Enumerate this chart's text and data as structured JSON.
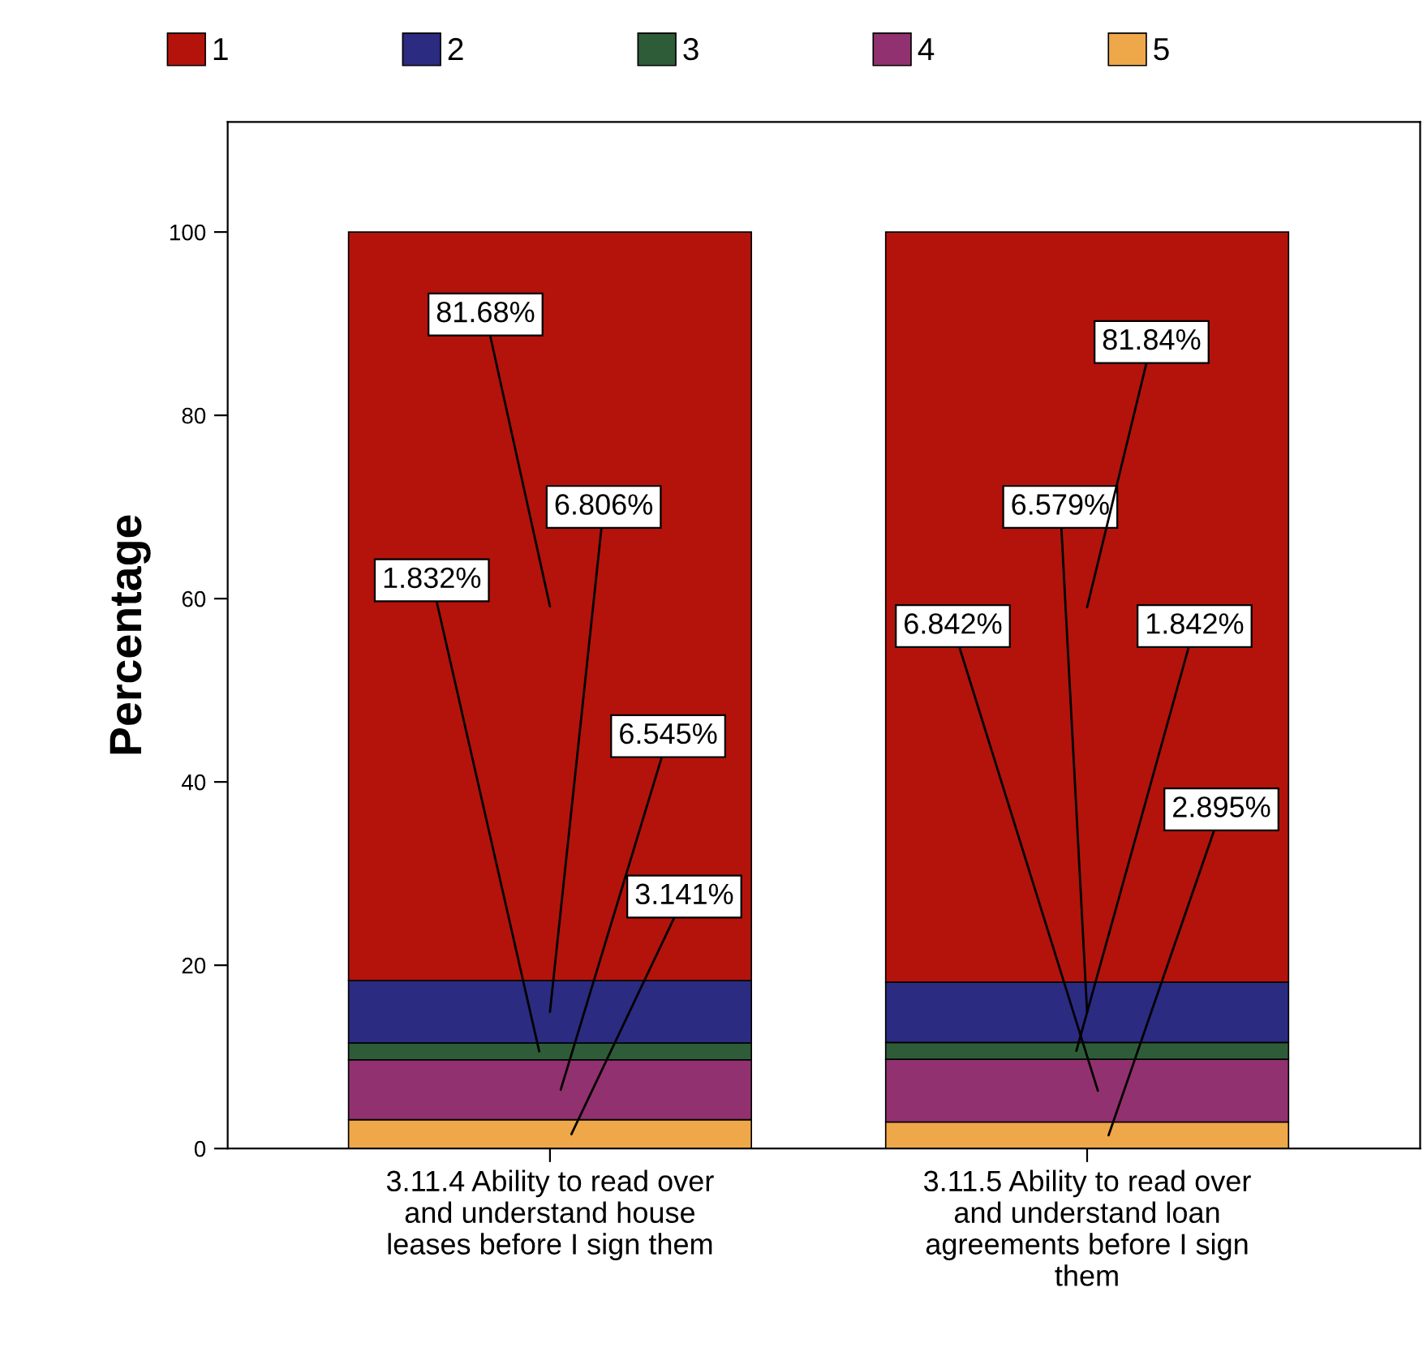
{
  "chart_data": {
    "type": "bar",
    "stacked": true,
    "ylabel": "Percentage",
    "categories": [
      "3.11.4 Ability to read over\nand understand house\nleases before I sign them",
      "3.11.5 Ability to read over\nand understand loan\nagreements before I sign\nthem"
    ],
    "series": [
      {
        "name": "5",
        "color": "#eea84a",
        "values": [
          3.141,
          2.895
        ],
        "value_labels": [
          "3.141%",
          "2.895%"
        ]
      },
      {
        "name": "4",
        "color": "#92316f",
        "values": [
          6.545,
          6.842
        ],
        "value_labels": [
          "6.545%",
          "6.842%"
        ]
      },
      {
        "name": "3",
        "color": "#2e5c39",
        "values": [
          1.832,
          1.842
        ],
        "value_labels": [
          "1.832%",
          "1.842%"
        ]
      },
      {
        "name": "2",
        "color": "#2b2b82",
        "values": [
          6.806,
          6.579
        ],
        "value_labels": [
          "6.806%",
          "6.579%"
        ]
      },
      {
        "name": "1",
        "color": "#b3130b",
        "values": [
          81.68,
          81.84
        ],
        "value_labels": [
          "81.68%",
          "81.84%"
        ]
      }
    ],
    "ylim": [
      0,
      112
    ],
    "yticks": [
      0,
      20,
      40,
      60,
      80,
      100
    ],
    "grid": false,
    "legend": "top"
  }
}
